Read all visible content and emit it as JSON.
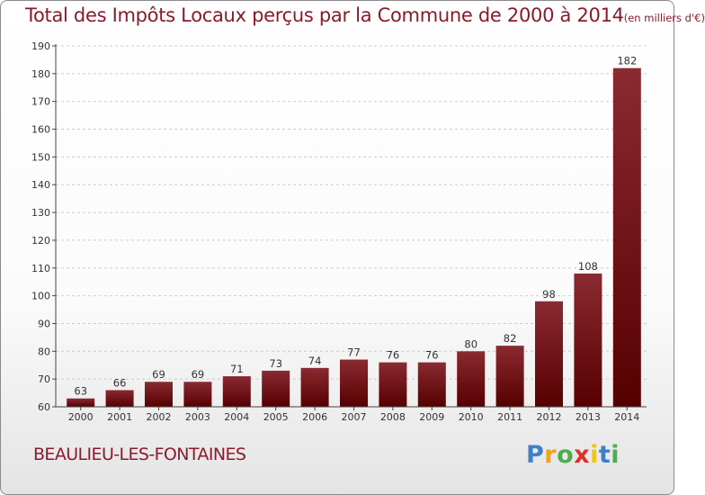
{
  "title": {
    "main": "Total des Impôts Locaux perçus par la Commune de 2000 à 2014",
    "units": "(en milliers d'€)"
  },
  "commune": "BEAULIEU-LES-FONTAINES",
  "brand": {
    "letters": [
      "P",
      "r",
      "o",
      "x",
      "i",
      "t",
      "i"
    ],
    "colors": {
      "blue": "#3f7fc7",
      "orange": "#f2a21c",
      "green": "#4cae4c",
      "red": "#e0302a",
      "yellow": "#f2c31c"
    }
  },
  "colors": {
    "bar_top": "#8a2a32",
    "bar_bottom": "#560000",
    "title": "#8b1a2b",
    "grid": "#cccccc",
    "axis": "#444444"
  },
  "chart_data": {
    "type": "bar",
    "title": "Total des Impôts Locaux perçus par la Commune de 2000 à 2014 (en milliers d'€)",
    "xlabel": "",
    "ylabel": "",
    "categories": [
      "2000",
      "2001",
      "2002",
      "2003",
      "2004",
      "2005",
      "2006",
      "2007",
      "2008",
      "2009",
      "2010",
      "2011",
      "2012",
      "2013",
      "2014"
    ],
    "values": [
      63,
      66,
      69,
      69,
      71,
      73,
      74,
      77,
      76,
      76,
      80,
      82,
      98,
      108,
      182
    ],
    "ylim": [
      60,
      190
    ],
    "yticks": [
      60,
      70,
      80,
      90,
      100,
      110,
      120,
      130,
      140,
      150,
      160,
      170,
      180,
      190
    ],
    "grid": "horizontal-dashed",
    "data_labels": true
  }
}
